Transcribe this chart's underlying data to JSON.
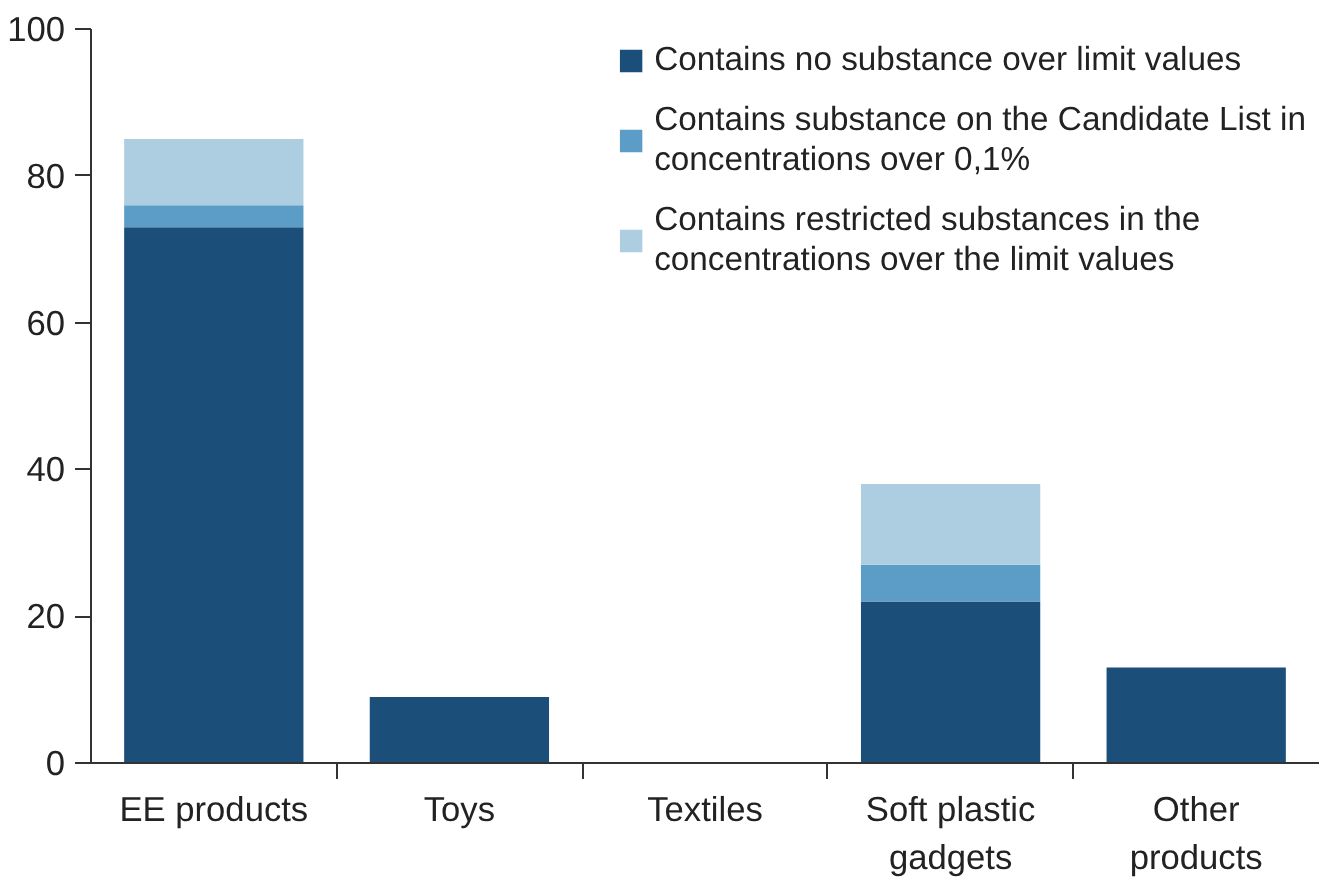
{
  "chart_data": {
    "type": "bar",
    "stacked": true,
    "categories": [
      "EE products",
      "Toys",
      "Textiles",
      "Soft plastic gadgets",
      "Other products"
    ],
    "series": [
      {
        "name": "Contains no substance over limit values",
        "color": "#1c4e7a",
        "values": [
          73,
          9,
          0,
          22,
          13
        ]
      },
      {
        "name": "Contains substance on the Candidate List in concentrations over 0,1%",
        "color": "#5b9dc6",
        "values": [
          3,
          0,
          0,
          5,
          0
        ]
      },
      {
        "name": "Contains restricted substances in the concentrations over the limit values",
        "color": "#adcde0",
        "values": [
          9,
          0,
          0,
          11,
          0
        ]
      }
    ],
    "ylim": [
      0,
      100
    ],
    "yticks": [
      0,
      20,
      40,
      60,
      80,
      100
    ],
    "grid": false,
    "legend": "top right"
  }
}
